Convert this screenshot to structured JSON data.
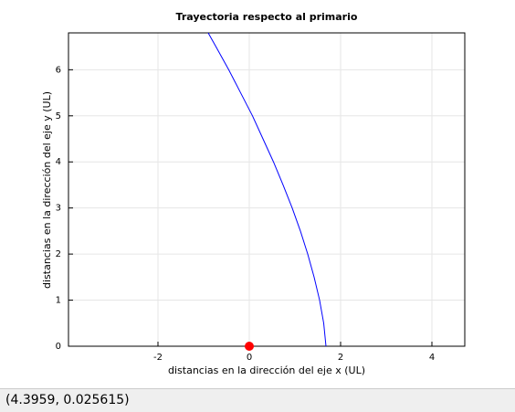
{
  "chart_data": {
    "type": "line",
    "title": "Trayectoria respecto al primario",
    "xlabel": "distancias en la dirección del eje x (UL)",
    "ylabel": "distancias en la dirección del eje y (UL)",
    "xlim": [
      -3.96,
      4.72
    ],
    "ylim": [
      0,
      6.8
    ],
    "xticks": [
      -2,
      0,
      2,
      4
    ],
    "yticks": [
      0,
      1,
      2,
      3,
      4,
      5,
      6
    ],
    "grid": true,
    "series": [
      {
        "color": "#0000ff",
        "x": [
          1.68,
          1.63,
          1.54,
          1.42,
          1.28,
          1.12,
          0.94,
          0.74,
          0.53,
          0.3,
          0.07,
          -0.19,
          -0.45,
          -0.73,
          -0.9
        ],
        "values": [
          0,
          0.5,
          1,
          1.5,
          2,
          2.5,
          3,
          3.5,
          4,
          4.5,
          5,
          5.5,
          6,
          6.5,
          6.8
        ]
      },
      {
        "type": "scatter",
        "color": "#ff0000",
        "x": [
          0
        ],
        "values": [
          0
        ]
      }
    ]
  },
  "status": "(4.3959, 0.025615)"
}
